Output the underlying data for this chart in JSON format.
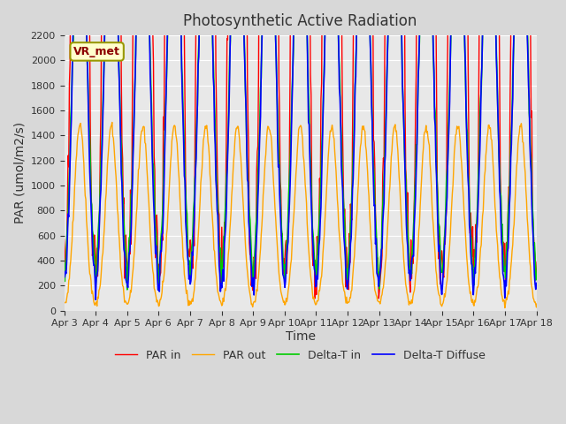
{
  "title": "Photosynthetic Active Radiation",
  "ylabel": "PAR (umol/m2/s)",
  "xlabel": "Time",
  "label_text": "VR_met",
  "ylim": [
    0,
    2200
  ],
  "background_color": "#e8e8e8",
  "plot_bg_color": "#f0f0f0",
  "legend_labels": [
    "PAR in",
    "PAR out",
    "Delta-T in",
    "Delta-T Diffuse"
  ],
  "legend_colors": [
    "#ff0000",
    "#ffa500",
    "#00cc00",
    "#0000ff"
  ],
  "x_tick_labels": [
    "Apr 3",
    "Apr 4",
    "Apr 5",
    "Apr 6",
    "Apr 7",
    "Apr 8",
    "Apr 9",
    "Apr 10",
    "Apr 11",
    "Apr 12",
    "Apr 13",
    "Apr 14",
    "Apr 15",
    "Apr 16",
    "Apr 17",
    "Apr 18"
  ],
  "n_days": 16,
  "points_per_day": 48
}
